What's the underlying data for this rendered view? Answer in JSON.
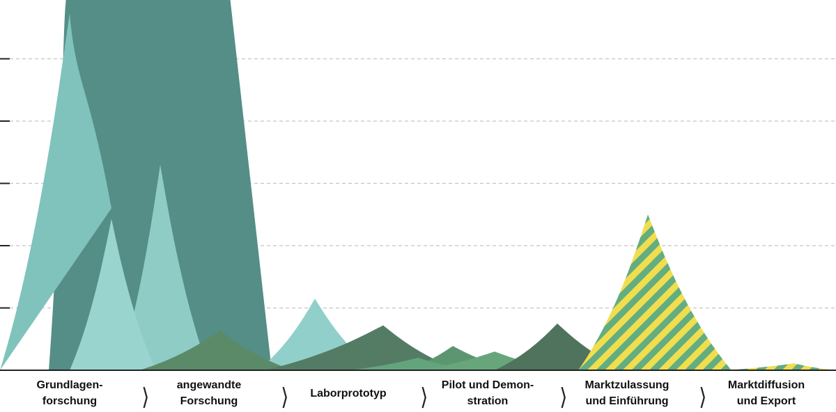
{
  "chart_data": {
    "type": "area",
    "title": "",
    "xlabel": "",
    "ylabel": "",
    "ylim": [
      0,
      6
    ],
    "y_ticks": [
      1,
      2,
      3,
      4,
      5
    ],
    "y_tick_labels": [],
    "grid": true,
    "categories": [
      [
        "Grundlagen-",
        "forschung"
      ],
      [
        "angewandte",
        "Forschung"
      ],
      [
        "Laborprototyp"
      ],
      [
        "Pilot und Demon-",
        "stration"
      ],
      [
        "Marktzulassung",
        "und Einführung"
      ],
      [
        "Marktdiffusion",
        "und Export"
      ]
    ],
    "series": [
      {
        "shape": "plateau",
        "color": "#548e87",
        "pts": [
          [
            0.35,
            0
          ],
          [
            0.45,
            3.0
          ],
          [
            0.48,
            6.0
          ],
          [
            1.65,
            6.0
          ],
          [
            1.75,
            4.0
          ],
          [
            1.85,
            2.0
          ],
          [
            1.95,
            0
          ]
        ]
      },
      {
        "shape": "peak",
        "color": "#80c3bc",
        "pts": [
          [
            0.0,
            0
          ],
          [
            0.5,
            5.73
          ],
          [
            0.8,
            2.6
          ],
          [
            1.05,
            0
          ]
        ]
      },
      {
        "shape": "peak",
        "color": "#8fccc5",
        "pts": [
          [
            0.85,
            0
          ],
          [
            1.15,
            3.3
          ],
          [
            1.5,
            0
          ]
        ]
      },
      {
        "shape": "peak",
        "color": "#99d4ce",
        "pts": [
          [
            0.5,
            0
          ],
          [
            0.8,
            2.43
          ],
          [
            1.12,
            0
          ]
        ]
      },
      {
        "shape": "peak",
        "color": "#91d0ca",
        "pts": [
          [
            1.85,
            0
          ],
          [
            2.26,
            1.15
          ],
          [
            2.7,
            0
          ]
        ]
      },
      {
        "shape": "peak",
        "color": "#5b8a69",
        "pts": [
          [
            1.0,
            0
          ],
          [
            1.58,
            0.64
          ],
          [
            2.1,
            0
          ]
        ]
      },
      {
        "shape": "peak",
        "color": "#547c65",
        "pts": [
          [
            1.9,
            0
          ],
          [
            2.75,
            0.72
          ],
          [
            3.3,
            0
          ]
        ]
      },
      {
        "shape": "peak",
        "color": "#5c9670",
        "pts": [
          [
            2.9,
            0
          ],
          [
            3.25,
            0.39
          ],
          [
            3.7,
            0
          ]
        ]
      },
      {
        "shape": "peak",
        "color": "#64a47d",
        "pts": [
          [
            2.5,
            0
          ],
          [
            3.0,
            0.2
          ],
          [
            3.4,
            0
          ]
        ]
      },
      {
        "shape": "peak",
        "color": "#67a67b",
        "pts": [
          [
            3.0,
            0
          ],
          [
            3.55,
            0.3
          ],
          [
            4.05,
            0
          ]
        ]
      },
      {
        "shape": "peak",
        "color": "#4f735d",
        "pts": [
          [
            3.55,
            0
          ],
          [
            4.0,
            0.75
          ],
          [
            4.5,
            0
          ]
        ]
      },
      {
        "shape": "striped",
        "colors": [
          "#f0de4e",
          "#63ad80"
        ],
        "pts": [
          [
            4.15,
            0
          ],
          [
            4.65,
            2.5
          ],
          [
            5.25,
            0
          ]
        ]
      },
      {
        "shape": "striped",
        "colors": [
          "#f0de4e",
          "#63ad80"
        ],
        "pts": [
          [
            5.2,
            0
          ],
          [
            5.7,
            0.11
          ],
          [
            6.0,
            0
          ]
        ]
      }
    ]
  }
}
